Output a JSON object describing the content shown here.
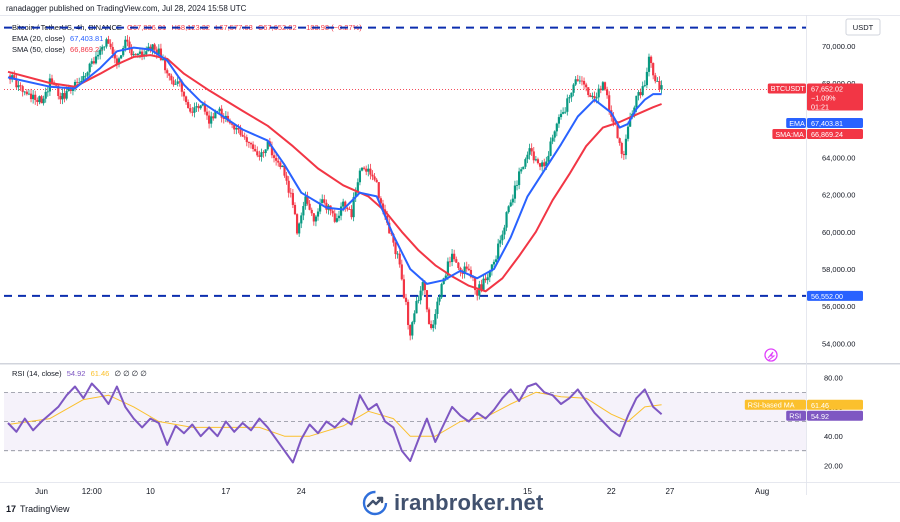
{
  "header": {
    "publisher_line": "ranadagger published on TradingView.com, Jul 28, 2024 15:58 UTC",
    "symbol_line": "Bitcoin / TetherUS, 4h, BINANCE",
    "ohlc": {
      "o": "O67,836.01",
      "h": "H68,123.32",
      "l": "L67,577.63",
      "c": "C67,652.02",
      "chg": "−183.98 (−0.27%)"
    },
    "currency": "USDT"
  },
  "indicators": [
    {
      "label": "EMA (20, close)",
      "value": "67,403.81",
      "color": "#2962ff"
    },
    {
      "label": "SMA (50, close)",
      "value": "66,869.24",
      "color": "#f23645"
    }
  ],
  "rsi_legend": {
    "label": "RSI (14, close)",
    "rsi": "54.92",
    "ma": "61.46",
    "rest": "∅ ∅ ∅ ∅"
  },
  "price_axis": {
    "ticks": [
      "70,000.00",
      "68,000.00",
      "66,000.00",
      "64,000.00",
      "62,000.00",
      "60,000.00",
      "58,000.00",
      "56,000.00",
      "54,000.00"
    ]
  },
  "rsi_axis": {
    "ticks": [
      "80.00",
      "60.00",
      "40.00",
      "20.00"
    ]
  },
  "time_axis": {
    "labels": [
      "Jun",
      "12:00",
      "10",
      "17",
      "24",
      "15",
      "22",
      "27",
      "Aug"
    ]
  },
  "labels": {
    "btc": {
      "title": "BTCUSDT",
      "price": "67,652.02",
      "change": "−1.09%",
      "countdown": "01:21",
      "color": "#f23645"
    },
    "ema": {
      "title": "EMA",
      "value": "67,403.81",
      "color": "#2962ff"
    },
    "sma": {
      "title": "SMA:MA",
      "value": "66,869.24",
      "color": "#f23645"
    },
    "level": {
      "value": "56,552.00",
      "color": "#2962ff"
    },
    "rsi_ma": {
      "title": "RSI-based MA",
      "value": "61.46",
      "color": "#fbc02d"
    },
    "rsi": {
      "title": "RSI",
      "value": "54.92",
      "color": "#7e57c2"
    }
  },
  "watermark": {
    "text": "iranbroker.net"
  },
  "footer": {
    "brand": "TradingView"
  },
  "chart_data": {
    "type": "line",
    "title": "Bitcoin / TetherUS, 4h, BINANCE",
    "price_range": [
      53000,
      71600
    ],
    "horizontal_levels": [
      70972,
      56552
    ],
    "last_price": 67652.02,
    "price_path": [
      [
        0,
        68400
      ],
      [
        4,
        67600
      ],
      [
        8,
        67000
      ],
      [
        10,
        68000
      ],
      [
        13,
        67200
      ],
      [
        15,
        67600
      ],
      [
        18,
        68300
      ],
      [
        21,
        69400
      ],
      [
        24,
        70300
      ],
      [
        26,
        69000
      ],
      [
        28,
        70500
      ],
      [
        30,
        69300
      ],
      [
        32,
        69600
      ],
      [
        34,
        69900
      ],
      [
        36,
        69600
      ],
      [
        39,
        68000
      ],
      [
        41,
        67800
      ],
      [
        44,
        66300
      ],
      [
        46,
        66900
      ],
      [
        48,
        66000
      ],
      [
        50,
        66600
      ],
      [
        53,
        65800
      ],
      [
        55,
        65300
      ],
      [
        58,
        64800
      ],
      [
        60,
        64200
      ],
      [
        62,
        64700
      ],
      [
        65,
        63700
      ],
      [
        68,
        61500
      ],
      [
        69,
        60000
      ],
      [
        71,
        61900
      ],
      [
        73,
        60800
      ],
      [
        75,
        61700
      ],
      [
        78,
        60700
      ],
      [
        80,
        61500
      ],
      [
        82,
        61000
      ],
      [
        84,
        63500
      ],
      [
        86,
        63400
      ],
      [
        88,
        62700
      ],
      [
        89,
        61300
      ],
      [
        91,
        60100
      ],
      [
        93,
        58700
      ],
      [
        94,
        57300
      ],
      [
        95,
        56100
      ],
      [
        96,
        54200
      ],
      [
        97,
        55800
      ],
      [
        99,
        57300
      ],
      [
        101,
        54600
      ],
      [
        102,
        55800
      ],
      [
        104,
        57500
      ],
      [
        106,
        58900
      ],
      [
        108,
        57700
      ],
      [
        110,
        58100
      ],
      [
        112,
        56800
      ],
      [
        114,
        57400
      ],
      [
        116,
        58400
      ],
      [
        118,
        59900
      ],
      [
        120,
        61700
      ],
      [
        122,
        63000
      ],
      [
        124,
        64400
      ],
      [
        126,
        64000
      ],
      [
        128,
        63300
      ],
      [
        130,
        65100
      ],
      [
        132,
        66200
      ],
      [
        134,
        67200
      ],
      [
        136,
        68300
      ],
      [
        138,
        67600
      ],
      [
        140,
        67200
      ],
      [
        142,
        67900
      ],
      [
        144,
        66400
      ],
      [
        145,
        65700
      ],
      [
        146,
        64600
      ],
      [
        147,
        63900
      ],
      [
        148,
        65600
      ],
      [
        150,
        67100
      ],
      [
        151,
        67600
      ],
      [
        152,
        68100
      ],
      [
        153,
        69300
      ],
      [
        154,
        68400
      ],
      [
        155,
        67900
      ],
      [
        156,
        67650
      ]
    ],
    "ema20": [
      [
        0,
        68300
      ],
      [
        10,
        67800
      ],
      [
        16,
        67700
      ],
      [
        22,
        68800
      ],
      [
        26,
        69700
      ],
      [
        30,
        69900
      ],
      [
        34,
        69800
      ],
      [
        38,
        69200
      ],
      [
        42,
        67900
      ],
      [
        46,
        67000
      ],
      [
        50,
        66400
      ],
      [
        56,
        65500
      ],
      [
        62,
        64900
      ],
      [
        66,
        63600
      ],
      [
        70,
        62100
      ],
      [
        76,
        61300
      ],
      [
        80,
        61200
      ],
      [
        84,
        62100
      ],
      [
        88,
        61900
      ],
      [
        92,
        59800
      ],
      [
        96,
        58000
      ],
      [
        100,
        57200
      ],
      [
        104,
        57400
      ],
      [
        108,
        57900
      ],
      [
        112,
        57500
      ],
      [
        116,
        58000
      ],
      [
        120,
        59700
      ],
      [
        124,
        61900
      ],
      [
        128,
        63300
      ],
      [
        132,
        64700
      ],
      [
        136,
        66200
      ],
      [
        140,
        67100
      ],
      [
        144,
        66400
      ],
      [
        146,
        65600
      ],
      [
        148,
        65800
      ],
      [
        150,
        66600
      ],
      [
        152,
        67100
      ],
      [
        154,
        67400
      ],
      [
        156,
        67404
      ]
    ],
    "sma50": [
      [
        0,
        68600
      ],
      [
        10,
        68000
      ],
      [
        16,
        67800
      ],
      [
        22,
        68500
      ],
      [
        26,
        69000
      ],
      [
        30,
        69400
      ],
      [
        34,
        69500
      ],
      [
        38,
        69300
      ],
      [
        42,
        68500
      ],
      [
        48,
        67600
      ],
      [
        56,
        66500
      ],
      [
        62,
        65700
      ],
      [
        68,
        64600
      ],
      [
        74,
        63400
      ],
      [
        80,
        62500
      ],
      [
        86,
        61900
      ],
      [
        90,
        61100
      ],
      [
        94,
        60000
      ],
      [
        98,
        59000
      ],
      [
        102,
        58200
      ],
      [
        106,
        57600
      ],
      [
        110,
        57100
      ],
      [
        114,
        56800
      ],
      [
        118,
        57500
      ],
      [
        122,
        58700
      ],
      [
        126,
        60000
      ],
      [
        130,
        61700
      ],
      [
        134,
        63100
      ],
      [
        138,
        64600
      ],
      [
        142,
        65600
      ],
      [
        146,
        65900
      ],
      [
        150,
        66300
      ],
      [
        154,
        66700
      ],
      [
        156,
        66869
      ]
    ],
    "rsi": {
      "range": [
        10,
        88
      ],
      "bands": [
        30,
        70
      ],
      "mid": 50,
      "values": [
        [
          0,
          49
        ],
        [
          2,
          43
        ],
        [
          4,
          52
        ],
        [
          6,
          44
        ],
        [
          8,
          50
        ],
        [
          10,
          55
        ],
        [
          12,
          60
        ],
        [
          14,
          68
        ],
        [
          16,
          74
        ],
        [
          18,
          66
        ],
        [
          20,
          76
        ],
        [
          22,
          70
        ],
        [
          24,
          62
        ],
        [
          26,
          74
        ],
        [
          28,
          60
        ],
        [
          30,
          52
        ],
        [
          32,
          46
        ],
        [
          34,
          52
        ],
        [
          36,
          49
        ],
        [
          38,
          34
        ],
        [
          40,
          47
        ],
        [
          42,
          42
        ],
        [
          44,
          48
        ],
        [
          46,
          40
        ],
        [
          48,
          46
        ],
        [
          50,
          40
        ],
        [
          52,
          50
        ],
        [
          54,
          43
        ],
        [
          56,
          49
        ],
        [
          58,
          44
        ],
        [
          60,
          52
        ],
        [
          62,
          46
        ],
        [
          64,
          38
        ],
        [
          66,
          30
        ],
        [
          68,
          22
        ],
        [
          70,
          38
        ],
        [
          72,
          48
        ],
        [
          74,
          42
        ],
        [
          76,
          50
        ],
        [
          78,
          46
        ],
        [
          80,
          52
        ],
        [
          82,
          48
        ],
        [
          84,
          68
        ],
        [
          86,
          58
        ],
        [
          88,
          62
        ],
        [
          90,
          50
        ],
        [
          92,
          46
        ],
        [
          94,
          30
        ],
        [
          96,
          23
        ],
        [
          98,
          38
        ],
        [
          100,
          52
        ],
        [
          102,
          36
        ],
        [
          104,
          48
        ],
        [
          106,
          60
        ],
        [
          108,
          54
        ],
        [
          110,
          50
        ],
        [
          112,
          56
        ],
        [
          114,
          52
        ],
        [
          116,
          58
        ],
        [
          118,
          66
        ],
        [
          120,
          72
        ],
        [
          122,
          64
        ],
        [
          124,
          74
        ],
        [
          126,
          76
        ],
        [
          128,
          70
        ],
        [
          130,
          68
        ],
        [
          132,
          62
        ],
        [
          134,
          66
        ],
        [
          136,
          72
        ],
        [
          138,
          64
        ],
        [
          140,
          56
        ],
        [
          142,
          50
        ],
        [
          144,
          44
        ],
        [
          146,
          40
        ],
        [
          148,
          54
        ],
        [
          150,
          66
        ],
        [
          152,
          72
        ],
        [
          154,
          60
        ],
        [
          156,
          55
        ]
      ],
      "ma": [
        [
          0,
          48
        ],
        [
          10,
          52
        ],
        [
          18,
          65
        ],
        [
          24,
          68
        ],
        [
          30,
          60
        ],
        [
          36,
          50
        ],
        [
          44,
          46
        ],
        [
          52,
          46
        ],
        [
          60,
          46
        ],
        [
          66,
          40
        ],
        [
          72,
          40
        ],
        [
          80,
          47
        ],
        [
          86,
          57
        ],
        [
          92,
          52
        ],
        [
          96,
          40
        ],
        [
          102,
          40
        ],
        [
          108,
          50
        ],
        [
          114,
          53
        ],
        [
          120,
          62
        ],
        [
          126,
          70
        ],
        [
          132,
          67
        ],
        [
          138,
          66
        ],
        [
          144,
          55
        ],
        [
          148,
          50
        ],
        [
          152,
          60
        ],
        [
          156,
          61.46
        ]
      ]
    }
  }
}
